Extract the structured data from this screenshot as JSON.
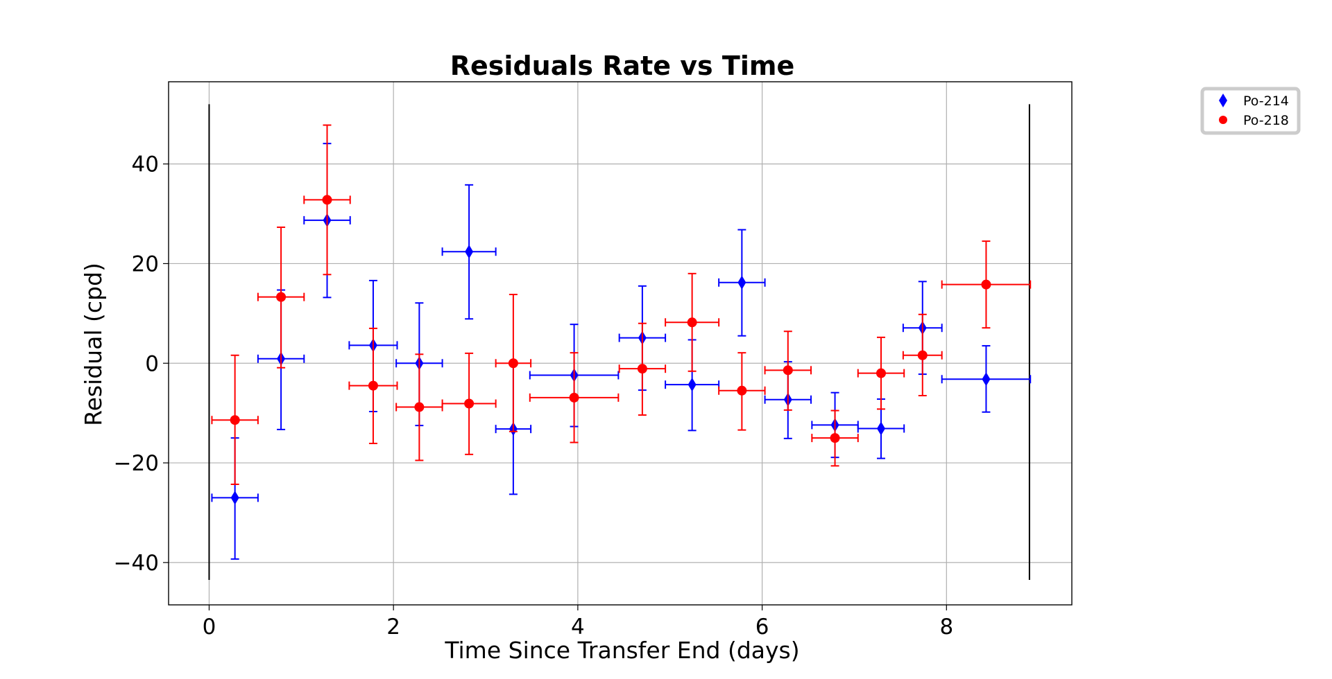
{
  "chart_data": {
    "type": "scatter",
    "title": "Residuals Rate vs Time",
    "xlabel": "Time Since Transfer End (days)",
    "ylabel": "Residual (cpd)",
    "xlim": [
      -0.44,
      9.36
    ],
    "ylim": [
      -48.5,
      56.5
    ],
    "xticks": [
      0,
      2,
      4,
      6,
      8
    ],
    "xtick_labels": [
      "0",
      "2",
      "4",
      "6",
      "8"
    ],
    "yticks": [
      -40,
      -20,
      0,
      20,
      40
    ],
    "ytick_labels": [
      "−40",
      "−20",
      "0",
      "20",
      "40"
    ],
    "grid": true,
    "legend_position": "outside-top-right",
    "vlines": [
      {
        "x": 0.0,
        "ymin": -43.5,
        "ymax": 52
      },
      {
        "x": 8.9,
        "ymin": -43.5,
        "ymax": 52
      }
    ],
    "series": [
      {
        "name": "Po-214",
        "color": "#0000ff",
        "marker": "diamond",
        "points": [
          {
            "x": 0.28,
            "y": -27.0,
            "xerr": 0.25,
            "yerr_lo": 12.3,
            "yerr_hi": 12.0
          },
          {
            "x": 0.78,
            "y": 0.9,
            "xerr": 0.25,
            "yerr_lo": 14.2,
            "yerr_hi": 13.8
          },
          {
            "x": 1.28,
            "y": 28.7,
            "xerr": 0.25,
            "yerr_lo": 15.5,
            "yerr_hi": 15.4
          },
          {
            "x": 1.78,
            "y": 3.6,
            "xerr": 0.26,
            "yerr_lo": 13.3,
            "yerr_hi": 13.0
          },
          {
            "x": 2.28,
            "y": 0.0,
            "xerr": 0.25,
            "yerr_lo": 12.5,
            "yerr_hi": 12.1
          },
          {
            "x": 2.82,
            "y": 22.4,
            "xerr": 0.29,
            "yerr_lo": 13.5,
            "yerr_hi": 13.4
          },
          {
            "x": 3.3,
            "y": -13.2,
            "xerr": 0.19,
            "yerr_lo": 13.1,
            "yerr_hi": 13.1
          },
          {
            "x": 3.96,
            "y": -2.4,
            "xerr": 0.48,
            "yerr_lo": 10.3,
            "yerr_hi": 10.2
          },
          {
            "x": 4.7,
            "y": 5.1,
            "xerr": 0.25,
            "yerr_lo": 10.5,
            "yerr_hi": 10.4
          },
          {
            "x": 5.24,
            "y": -4.3,
            "xerr": 0.29,
            "yerr_lo": 9.2,
            "yerr_hi": 9.0
          },
          {
            "x": 5.78,
            "y": 16.2,
            "xerr": 0.25,
            "yerr_lo": 10.7,
            "yerr_hi": 10.6
          },
          {
            "x": 6.28,
            "y": -7.3,
            "xerr": 0.25,
            "yerr_lo": 7.8,
            "yerr_hi": 7.6
          },
          {
            "x": 6.79,
            "y": -12.4,
            "xerr": 0.25,
            "yerr_lo": 6.5,
            "yerr_hi": 6.5
          },
          {
            "x": 7.29,
            "y": -13.1,
            "xerr": 0.25,
            "yerr_lo": 6.0,
            "yerr_hi": 5.9
          },
          {
            "x": 7.74,
            "y": 7.1,
            "xerr": 0.21,
            "yerr_lo": 9.3,
            "yerr_hi": 9.3
          },
          {
            "x": 8.43,
            "y": -3.2,
            "xerr": 0.48,
            "yerr_lo": 6.6,
            "yerr_hi": 6.7
          }
        ]
      },
      {
        "name": "Po-218",
        "color": "#ff0000",
        "marker": "circle",
        "points": [
          {
            "x": 0.28,
            "y": -11.4,
            "xerr": 0.25,
            "yerr_lo": 12.9,
            "yerr_hi": 13.0
          },
          {
            "x": 0.78,
            "y": 13.3,
            "xerr": 0.25,
            "yerr_lo": 14.2,
            "yerr_hi": 14.0
          },
          {
            "x": 1.28,
            "y": 32.8,
            "xerr": 0.25,
            "yerr_lo": 15.0,
            "yerr_hi": 15.0
          },
          {
            "x": 1.78,
            "y": -4.5,
            "xerr": 0.26,
            "yerr_lo": 11.6,
            "yerr_hi": 11.5
          },
          {
            "x": 2.28,
            "y": -8.8,
            "xerr": 0.25,
            "yerr_lo": 10.7,
            "yerr_hi": 10.6
          },
          {
            "x": 2.82,
            "y": -8.1,
            "xerr": 0.29,
            "yerr_lo": 10.2,
            "yerr_hi": 10.1
          },
          {
            "x": 3.3,
            "y": 0.0,
            "xerr": 0.19,
            "yerr_lo": 13.7,
            "yerr_hi": 13.8
          },
          {
            "x": 3.96,
            "y": -6.9,
            "xerr": 0.48,
            "yerr_lo": 9.0,
            "yerr_hi": 9.0
          },
          {
            "x": 4.7,
            "y": -1.1,
            "xerr": 0.25,
            "yerr_lo": 9.3,
            "yerr_hi": 9.1
          },
          {
            "x": 5.24,
            "y": 8.2,
            "xerr": 0.29,
            "yerr_lo": 9.8,
            "yerr_hi": 9.8
          },
          {
            "x": 5.78,
            "y": -5.5,
            "xerr": 0.25,
            "yerr_lo": 7.9,
            "yerr_hi": 7.6
          },
          {
            "x": 6.28,
            "y": -1.4,
            "xerr": 0.25,
            "yerr_lo": 8.0,
            "yerr_hi": 7.8
          },
          {
            "x": 6.79,
            "y": -15.0,
            "xerr": 0.25,
            "yerr_lo": 5.6,
            "yerr_hi": 5.5
          },
          {
            "x": 7.29,
            "y": -2.0,
            "xerr": 0.25,
            "yerr_lo": 7.2,
            "yerr_hi": 7.2
          },
          {
            "x": 7.74,
            "y": 1.6,
            "xerr": 0.21,
            "yerr_lo": 8.1,
            "yerr_hi": 8.2
          },
          {
            "x": 8.43,
            "y": 15.8,
            "xerr": 0.48,
            "yerr_lo": 8.7,
            "yerr_hi": 8.7
          }
        ]
      }
    ]
  }
}
